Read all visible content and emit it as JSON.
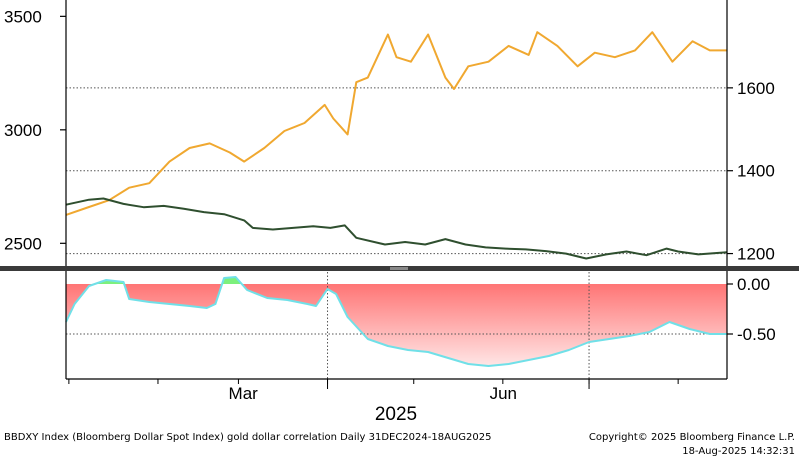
{
  "footer": {
    "left": "BBDXY Index (Bloomberg Dollar Spot Index) gold dollar correlation  Daily 31DEC2024-18AUG2025",
    "copyright": "Copyright© 2025 Bloomberg Finance L.P.",
    "timestamp": "18-Aug-2025 14:32:31"
  },
  "colors": {
    "gold": "#f0a830",
    "dollar": "#2f4f2f",
    "corr_fill_pos": "#7cf07c",
    "corr_fill_neg": "#ff6b6b",
    "corr_line": "#70e0e8"
  },
  "chart_data": [
    {
      "type": "line",
      "panel": "top",
      "x_axis": {
        "type": "date",
        "range": [
          "2024-12-31",
          "2025-08-18"
        ],
        "tick_labels": [
          "Mar",
          "Jun"
        ],
        "year_label": "2025"
      },
      "left_axis": {
        "range": [
          2400,
          3550
        ],
        "ticks": [
          2500,
          3000,
          3500
        ]
      },
      "right_axis": {
        "range": [
          1170,
          1800
        ],
        "ticks": [
          1200,
          1400,
          1600
        ]
      },
      "grid": "dotted horizontal at right axis ticks",
      "series": [
        {
          "axis": "left",
          "color": "#f0a830",
          "points": [
            [
              "2024-12-31",
              2625
            ],
            [
              "2025-01-08",
              2660
            ],
            [
              "2025-01-15",
              2690
            ],
            [
              "2025-01-22",
              2745
            ],
            [
              "2025-01-29",
              2765
            ],
            [
              "2025-02-05",
              2860
            ],
            [
              "2025-02-12",
              2920
            ],
            [
              "2025-02-19",
              2940
            ],
            [
              "2025-02-26",
              2900
            ],
            [
              "2025-03-03",
              2860
            ],
            [
              "2025-03-10",
              2920
            ],
            [
              "2025-03-17",
              2995
            ],
            [
              "2025-03-24",
              3030
            ],
            [
              "2025-03-31",
              3110
            ],
            [
              "2025-04-03",
              3050
            ],
            [
              "2025-04-08",
              2980
            ],
            [
              "2025-04-11",
              3210
            ],
            [
              "2025-04-15",
              3230
            ],
            [
              "2025-04-22",
              3420
            ],
            [
              "2025-04-25",
              3320
            ],
            [
              "2025-04-30",
              3300
            ],
            [
              "2025-05-06",
              3420
            ],
            [
              "2025-05-12",
              3230
            ],
            [
              "2025-05-15",
              3180
            ],
            [
              "2025-05-20",
              3280
            ],
            [
              "2025-05-27",
              3300
            ],
            [
              "2025-06-03",
              3370
            ],
            [
              "2025-06-10",
              3330
            ],
            [
              "2025-06-13",
              3430
            ],
            [
              "2025-06-20",
              3370
            ],
            [
              "2025-06-27",
              3280
            ],
            [
              "2025-07-03",
              3340
            ],
            [
              "2025-07-10",
              3320
            ],
            [
              "2025-07-17",
              3350
            ],
            [
              "2025-07-23",
              3430
            ],
            [
              "2025-07-30",
              3300
            ],
            [
              "2025-08-06",
              3390
            ],
            [
              "2025-08-12",
              3350
            ],
            [
              "2025-08-18",
              3350
            ]
          ]
        },
        {
          "axis": "right",
          "color": "#2f4f2f",
          "points": [
            [
              "2024-12-31",
              1318
            ],
            [
              "2025-01-08",
              1330
            ],
            [
              "2025-01-13",
              1333
            ],
            [
              "2025-01-20",
              1320
            ],
            [
              "2025-01-27",
              1312
            ],
            [
              "2025-02-03",
              1315
            ],
            [
              "2025-02-10",
              1308
            ],
            [
              "2025-02-17",
              1300
            ],
            [
              "2025-02-24",
              1295
            ],
            [
              "2025-03-03",
              1280
            ],
            [
              "2025-03-06",
              1262
            ],
            [
              "2025-03-13",
              1258
            ],
            [
              "2025-03-20",
              1262
            ],
            [
              "2025-03-27",
              1266
            ],
            [
              "2025-04-02",
              1262
            ],
            [
              "2025-04-07",
              1268
            ],
            [
              "2025-04-11",
              1238
            ],
            [
              "2025-04-21",
              1222
            ],
            [
              "2025-04-28",
              1228
            ],
            [
              "2025-05-05",
              1222
            ],
            [
              "2025-05-12",
              1235
            ],
            [
              "2025-05-19",
              1222
            ],
            [
              "2025-05-26",
              1215
            ],
            [
              "2025-06-02",
              1212
            ],
            [
              "2025-06-09",
              1210
            ],
            [
              "2025-06-16",
              1206
            ],
            [
              "2025-06-23",
              1200
            ],
            [
              "2025-06-30",
              1188
            ],
            [
              "2025-07-07",
              1198
            ],
            [
              "2025-07-14",
              1205
            ],
            [
              "2025-07-21",
              1196
            ],
            [
              "2025-07-28",
              1212
            ],
            [
              "2025-08-01",
              1205
            ],
            [
              "2025-08-08",
              1198
            ],
            [
              "2025-08-18",
              1203
            ]
          ]
        }
      ]
    },
    {
      "type": "area",
      "panel": "bottom",
      "y_axis": {
        "range": [
          -0.95,
          0.12
        ],
        "ticks": [
          "0.00",
          "-0.50"
        ]
      },
      "series": [
        {
          "color": "#70e0e8",
          "points": [
            [
              "2024-12-31",
              -0.38
            ],
            [
              "2025-01-03",
              -0.2
            ],
            [
              "2025-01-08",
              -0.02
            ],
            [
              "2025-01-14",
              0.04
            ],
            [
              "2025-01-17",
              0.03
            ],
            [
              "2025-01-20",
              0.02
            ],
            [
              "2025-01-22",
              -0.15
            ],
            [
              "2025-01-29",
              -0.18
            ],
            [
              "2025-02-05",
              -0.2
            ],
            [
              "2025-02-12",
              -0.22
            ],
            [
              "2025-02-18",
              -0.24
            ],
            [
              "2025-02-21",
              -0.2
            ],
            [
              "2025-02-24",
              0.06
            ],
            [
              "2025-02-28",
              0.07
            ],
            [
              "2025-03-04",
              -0.06
            ],
            [
              "2025-03-11",
              -0.14
            ],
            [
              "2025-03-18",
              -0.16
            ],
            [
              "2025-03-25",
              -0.2
            ],
            [
              "2025-03-28",
              -0.22
            ],
            [
              "2025-04-01",
              -0.05
            ],
            [
              "2025-04-04",
              -0.1
            ],
            [
              "2025-04-08",
              -0.33
            ],
            [
              "2025-04-15",
              -0.55
            ],
            [
              "2025-04-22",
              -0.62
            ],
            [
              "2025-04-29",
              -0.66
            ],
            [
              "2025-05-06",
              -0.68
            ],
            [
              "2025-05-13",
              -0.74
            ],
            [
              "2025-05-20",
              -0.8
            ],
            [
              "2025-05-27",
              -0.82
            ],
            [
              "2025-06-03",
              -0.8
            ],
            [
              "2025-06-10",
              -0.76
            ],
            [
              "2025-06-17",
              -0.72
            ],
            [
              "2025-06-24",
              -0.66
            ],
            [
              "2025-07-01",
              -0.58
            ],
            [
              "2025-07-08",
              -0.55
            ],
            [
              "2025-07-15",
              -0.52
            ],
            [
              "2025-07-22",
              -0.48
            ],
            [
              "2025-07-29",
              -0.38
            ],
            [
              "2025-08-05",
              -0.45
            ],
            [
              "2025-08-12",
              -0.5
            ],
            [
              "2025-08-18",
              -0.5
            ]
          ]
        }
      ]
    }
  ]
}
